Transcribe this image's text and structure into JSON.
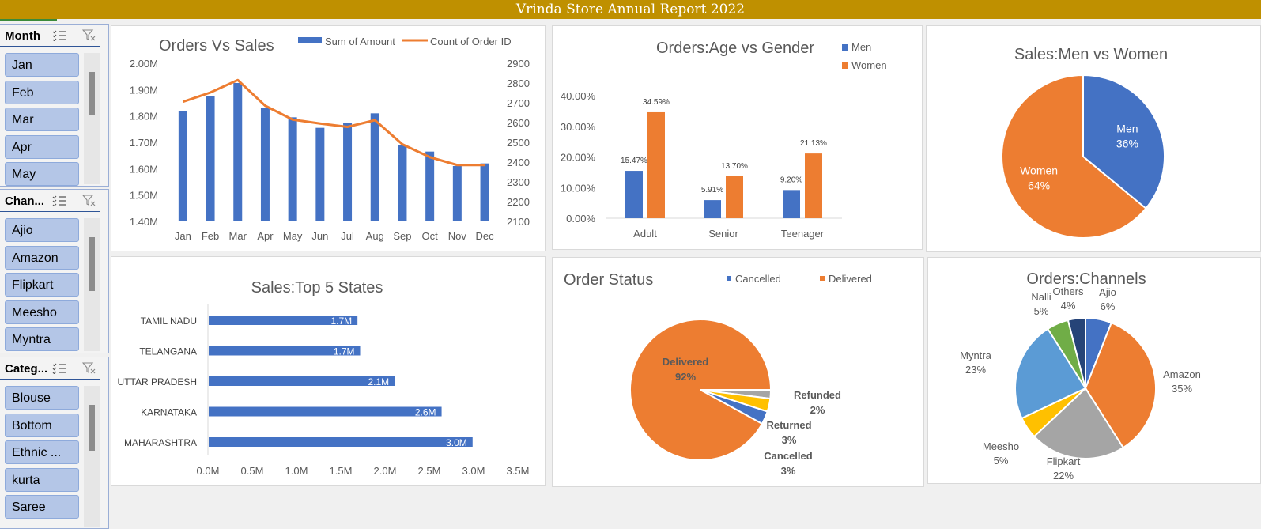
{
  "report_title": "Vrinda Store Annual Report 2022",
  "colors": {
    "blue": "#4472c4",
    "orange": "#ed7d31",
    "gray": "#a5a5a5",
    "yellow": "#ffc000",
    "lightblue": "#5b9bd5",
    "green": "#70ad47",
    "navy": "#264478",
    "gold": "#bf9000"
  },
  "slicers": [
    {
      "title": "Month",
      "items": [
        "Jan",
        "Feb",
        "Mar",
        "Apr",
        "May"
      ]
    },
    {
      "title": "Chan...",
      "items": [
        "Ajio",
        "Amazon",
        "Flipkart",
        "Meesho",
        "Myntra"
      ]
    },
    {
      "title": "Categ...",
      "items": [
        "Blouse",
        "Bottom",
        "Ethnic ...",
        "kurta",
        "Saree"
      ]
    }
  ],
  "chart_data": [
    {
      "type": "bar",
      "title": "Orders Vs Sales",
      "categories": [
        "Jan",
        "Feb",
        "Mar",
        "Apr",
        "May",
        "Jun",
        "Jul",
        "Aug",
        "Sep",
        "Oct",
        "Nov",
        "Dec"
      ],
      "series": [
        {
          "name": "Sum of Amount",
          "type": "bar",
          "axis": "left",
          "values": [
            1.82,
            1.875,
            1.925,
            1.83,
            1.795,
            1.755,
            1.775,
            1.81,
            1.69,
            1.665,
            1.61,
            1.62
          ]
        },
        {
          "name": "Count of Order ID",
          "type": "line",
          "axis": "right",
          "values": [
            2705,
            2752,
            2815,
            2685,
            2615,
            2595,
            2578,
            2612,
            2490,
            2425,
            2385,
            2385
          ]
        }
      ],
      "y_left_ticks": [
        "2.00M",
        "1.90M",
        "1.80M",
        "1.70M",
        "1.60M",
        "1.50M",
        "1.40M"
      ],
      "y_right_ticks": [
        "2900",
        "2800",
        "2700",
        "2600",
        "2500",
        "2400",
        "2300",
        "2200",
        "2100"
      ],
      "ylim_left": [
        1.4,
        2.0
      ],
      "ylim_right": [
        2100,
        2900
      ],
      "legend": "top"
    },
    {
      "type": "bar",
      "title": "Orders:Age vs Gender",
      "categories": [
        "Adult",
        "Senior",
        "Teenager"
      ],
      "series": [
        {
          "name": "Men",
          "values": [
            15.47,
            5.91,
            9.2
          ],
          "labels": [
            "15.47%",
            "5.91%",
            "9.20%"
          ]
        },
        {
          "name": "Women",
          "values": [
            34.59,
            13.7,
            21.13
          ],
          "labels": [
            "34.59%",
            "13.70%",
            "21.13%"
          ]
        }
      ],
      "y_ticks": [
        "40.00%",
        "30.00%",
        "20.00%",
        "10.00%",
        "0.00%"
      ],
      "ylim": [
        0,
        40
      ],
      "legend": "right"
    },
    {
      "type": "pie",
      "title": "Sales:Men vs Women",
      "slices": [
        {
          "name": "Men",
          "value": 36,
          "label": "36%"
        },
        {
          "name": "Women",
          "value": 64,
          "label": "64%"
        }
      ]
    },
    {
      "type": "bar",
      "orientation": "horizontal",
      "title": "Sales:Top 5 States",
      "categories": [
        "TAMIL NADU",
        "TELANGANA",
        "UTTAR PRADESH",
        "KARNATAKA",
        "MAHARASHTRA"
      ],
      "values": [
        1.68,
        1.71,
        2.1,
        2.63,
        2.98
      ],
      "value_labels": [
        "1.7M",
        "1.7M",
        "2.1M",
        "2.6M",
        "3.0M"
      ],
      "x_ticks": [
        "0.0M",
        "0.5M",
        "1.0M",
        "1.5M",
        "2.0M",
        "2.5M",
        "3.0M",
        "3.5M"
      ],
      "xlim": [
        0,
        3.5
      ]
    },
    {
      "type": "pie",
      "title": "Order Status",
      "legend_items": [
        "Cancelled",
        "Delivered"
      ],
      "slices": [
        {
          "name": "Delivered",
          "value": 92,
          "label": "92%"
        },
        {
          "name": "Refunded",
          "value": 2,
          "label": "2%"
        },
        {
          "name": "Returned",
          "value": 3,
          "label": "3%"
        },
        {
          "name": "Cancelled",
          "value": 3,
          "label": "3%"
        }
      ]
    },
    {
      "type": "pie",
      "title": "Orders:Channels",
      "slices": [
        {
          "name": "Ajio",
          "value": 6,
          "label": "6%"
        },
        {
          "name": "Amazon",
          "value": 35,
          "label": "35%"
        },
        {
          "name": "Flipkart",
          "value": 22,
          "label": "22%"
        },
        {
          "name": "Meesho",
          "value": 5,
          "label": "5%"
        },
        {
          "name": "Myntra",
          "value": 23,
          "label": "23%"
        },
        {
          "name": "Nalli",
          "value": 5,
          "label": "5%"
        },
        {
          "name": "Others",
          "value": 4,
          "label": "4%"
        }
      ]
    }
  ]
}
